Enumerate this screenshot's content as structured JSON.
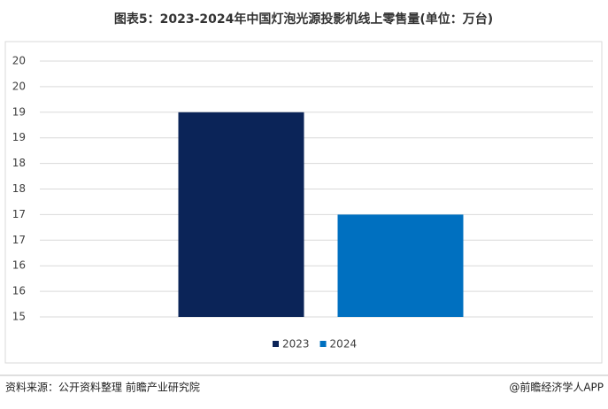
{
  "chart_data": {
    "type": "bar",
    "title": "图表5：2023-2024年中国灯泡光源投影机线上零售量(单位：万台)",
    "categories": [
      null
    ],
    "series": [
      {
        "name": "2023",
        "color": "#0b2458",
        "values": [
          19
        ]
      },
      {
        "name": "2024",
        "color": "#0070c0",
        "values": [
          17
        ]
      }
    ],
    "ylim": [
      15,
      20
    ],
    "yticks": [
      15,
      {
        "value": 15.5,
        "label": "16"
      },
      16,
      {
        "value": 16.5,
        "label": "17"
      },
      17,
      {
        "value": 17.5,
        "label": "18"
      },
      18,
      {
        "value": 18.5,
        "label": "19"
      },
      19,
      {
        "value": 19.5,
        "label": "20"
      },
      20
    ],
    "grid": true,
    "legend": "bottom"
  },
  "footer": {
    "source": "资料来源：公开资料整理 前瞻产业研究院",
    "brand": "@前瞻经济学人APP"
  }
}
